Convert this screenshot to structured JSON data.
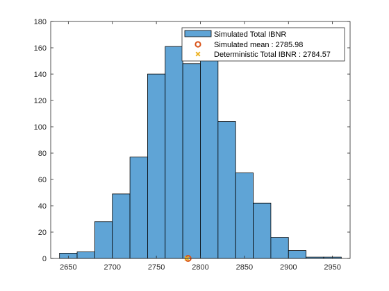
{
  "chart_data": {
    "type": "bar",
    "subtype": "histogram",
    "bin_edges": [
      2640,
      2660,
      2680,
      2700,
      2720,
      2740,
      2760,
      2780,
      2800,
      2820,
      2840,
      2860,
      2880,
      2900,
      2920,
      2940,
      2960
    ],
    "counts": [
      4,
      5,
      28,
      49,
      77,
      140,
      161,
      148,
      160,
      104,
      65,
      42,
      16,
      6,
      1,
      1
    ],
    "xlim": [
      2630,
      2970
    ],
    "ylim": [
      0,
      180
    ],
    "xticks": [
      2650,
      2700,
      2750,
      2800,
      2850,
      2900,
      2950
    ],
    "yticks": [
      0,
      20,
      40,
      60,
      80,
      100,
      120,
      140,
      160,
      180
    ],
    "grid": false,
    "legend_position": "top-right",
    "series": [
      {
        "name": "Simulated Total IBNR",
        "kind": "histogram",
        "color": "#5fa4d6"
      },
      {
        "name": "Simulated mean : 2785.98",
        "kind": "marker-circle",
        "x": 2785.98,
        "y": 0,
        "color": "#d95319"
      },
      {
        "name": "Deterministic Total IBNR : 2784.57",
        "kind": "marker-x",
        "x": 2784.57,
        "y": 0,
        "color": "#edb120"
      }
    ]
  }
}
